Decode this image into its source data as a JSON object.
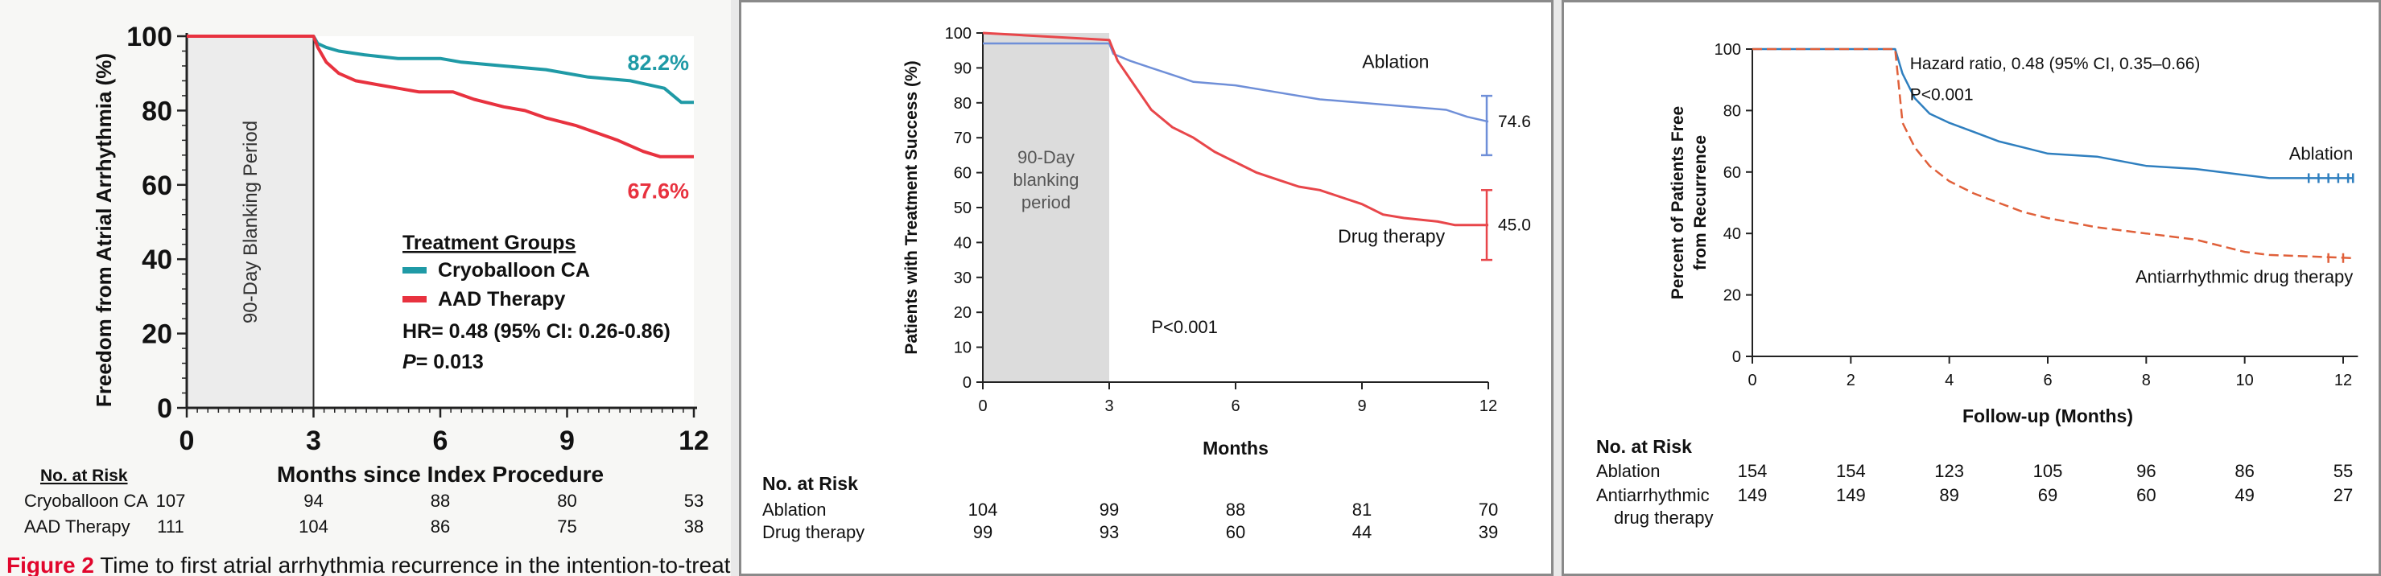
{
  "colors": {
    "p1_cryo": "#1f9aa6",
    "p1_aad": "#e8323f",
    "p2_ablation": "#6f8fd8",
    "p2_drug": "#e8464a",
    "p3_ablation": "#2f7fbf",
    "p3_aad": "#e0603a",
    "caption_red": "#e1062c"
  },
  "chart_data": [
    {
      "type": "line",
      "xlabel": "Months since Index Procedure",
      "ylabel": "Freedom from Atrial Arrhythmia (%)",
      "xlim": [
        0,
        12
      ],
      "ylim": [
        0,
        100
      ],
      "xticks": [
        "0",
        "3",
        "6",
        "9",
        "12"
      ],
      "yticks": [
        "0",
        "20",
        "40",
        "60",
        "80",
        "100"
      ],
      "blanking_label": "90-Day Blanking Period",
      "legend_title": "Treatment Groups",
      "hr_text": "HR= 0.48 (95% CI: 0.26-0.86)",
      "p_label": "P",
      "p_value": "= 0.013",
      "series": [
        {
          "name": "Cryoballoon CA",
          "end_label": "82.2%",
          "points": [
            [
              0,
              100
            ],
            [
              3,
              100
            ],
            [
              3.1,
              98
            ],
            [
              3.3,
              97
            ],
            [
              3.6,
              96
            ],
            [
              4.2,
              95
            ],
            [
              5,
              94
            ],
            [
              6,
              94
            ],
            [
              6.5,
              93
            ],
            [
              7.5,
              92
            ],
            [
              8.5,
              91
            ],
            [
              9.5,
              89
            ],
            [
              10.5,
              88
            ],
            [
              11.3,
              86
            ],
            [
              11.7,
              82.2
            ],
            [
              12,
              82.2
            ]
          ]
        },
        {
          "name": "AAD Therapy",
          "end_label": "67.6%",
          "points": [
            [
              0,
              100
            ],
            [
              3,
              100
            ],
            [
              3.1,
              97
            ],
            [
              3.3,
              93
            ],
            [
              3.6,
              90
            ],
            [
              4,
              88
            ],
            [
              4.5,
              87
            ],
            [
              5,
              86
            ],
            [
              5.5,
              85
            ],
            [
              6.3,
              85
            ],
            [
              6.8,
              83
            ],
            [
              7.5,
              81
            ],
            [
              8,
              80
            ],
            [
              8.5,
              78
            ],
            [
              9.2,
              76
            ],
            [
              9.7,
              74
            ],
            [
              10.2,
              72
            ],
            [
              10.8,
              69
            ],
            [
              11.2,
              67.6
            ],
            [
              12,
              67.6
            ]
          ]
        }
      ],
      "risk_title": "No. at Risk",
      "risk_rows": [
        {
          "label": "Cryoballoon CA",
          "values": [
            "107",
            "94",
            "88",
            "80",
            "53"
          ]
        },
        {
          "label": "AAD Therapy",
          "values": [
            "111",
            "104",
            "86",
            "75",
            "38"
          ]
        }
      ],
      "caption_bold": "Figure 2",
      "caption_rest": " Time to first atrial arrhythmia recurrence in the intention-to-treat"
    },
    {
      "type": "line",
      "xlabel": "Months",
      "ylabel": "Patients with Treatment Success (%)",
      "xlim": [
        0,
        12
      ],
      "ylim": [
        0,
        100
      ],
      "xticks": [
        "0",
        "3",
        "6",
        "9",
        "12"
      ],
      "yticks": [
        "0",
        "10",
        "20",
        "30",
        "40",
        "50",
        "60",
        "70",
        "80",
        "90",
        "100"
      ],
      "blanking_label": [
        "90-Day",
        "blanking",
        "period"
      ],
      "p_text": "P<0.001",
      "series": [
        {
          "name": "Ablation",
          "end_label": "74.6",
          "ci": [
            65,
            82
          ],
          "points": [
            [
              0,
              97
            ],
            [
              3,
              97
            ],
            [
              3.1,
              94
            ],
            [
              3.5,
              92
            ],
            [
              4,
              90
            ],
            [
              4.5,
              88
            ],
            [
              5,
              86
            ],
            [
              6,
              85
            ],
            [
              7,
              83
            ],
            [
              8,
              81
            ],
            [
              9,
              80
            ],
            [
              10,
              79
            ],
            [
              11,
              78
            ],
            [
              11.5,
              76
            ],
            [
              12,
              74.6
            ]
          ]
        },
        {
          "name": "Drug therapy",
          "end_label": "45.0",
          "ci": [
            35,
            55
          ],
          "points": [
            [
              0,
              100
            ],
            [
              3,
              98
            ],
            [
              3.2,
              92
            ],
            [
              3.6,
              85
            ],
            [
              4,
              78
            ],
            [
              4.5,
              73
            ],
            [
              5,
              70
            ],
            [
              5.5,
              66
            ],
            [
              6,
              63
            ],
            [
              6.5,
              60
            ],
            [
              7,
              58
            ],
            [
              7.5,
              56
            ],
            [
              8,
              55
            ],
            [
              8.5,
              53
            ],
            [
              9,
              51
            ],
            [
              9.5,
              48
            ],
            [
              10,
              47
            ],
            [
              10.8,
              46
            ],
            [
              11.2,
              45
            ],
            [
              12,
              45
            ]
          ]
        }
      ],
      "risk_title": "No. at Risk",
      "risk_rows": [
        {
          "label": "Ablation",
          "values": [
            "104",
            "99",
            "88",
            "81",
            "70"
          ]
        },
        {
          "label": "Drug therapy",
          "values": [
            "99",
            "93",
            "60",
            "44",
            "39"
          ]
        }
      ]
    },
    {
      "type": "line",
      "xlabel": "Follow-up (Months)",
      "ylabel": [
        "Percent of Patients Free",
        "from Recurrence"
      ],
      "xlim": [
        0,
        12
      ],
      "ylim": [
        0,
        100
      ],
      "xticks": [
        "0",
        "2",
        "4",
        "6",
        "8",
        "10",
        "12"
      ],
      "yticks": [
        "0",
        "20",
        "40",
        "60",
        "80",
        "100"
      ],
      "hr_text": "Hazard ratio, 0.48 (95% CI, 0.35–0.66)",
      "p_text": "P<0.001",
      "series": [
        {
          "name": "Ablation",
          "style": "solid",
          "points": [
            [
              0,
              100
            ],
            [
              2.9,
              100
            ],
            [
              3.05,
              92
            ],
            [
              3.3,
              84
            ],
            [
              3.6,
              79
            ],
            [
              4,
              76
            ],
            [
              4.5,
              73
            ],
            [
              5,
              70
            ],
            [
              5.5,
              68
            ],
            [
              6,
              66
            ],
            [
              7,
              65
            ],
            [
              8,
              62
            ],
            [
              9,
              61
            ],
            [
              10,
              59
            ],
            [
              10.5,
              58
            ],
            [
              12.2,
              58
            ]
          ]
        },
        {
          "name": "Antiarrhythmic drug therapy",
          "style": "dashed",
          "points": [
            [
              0,
              100
            ],
            [
              2.9,
              100
            ],
            [
              3.05,
              76
            ],
            [
              3.3,
              68
            ],
            [
              3.6,
              62
            ],
            [
              4,
              57
            ],
            [
              4.5,
              53
            ],
            [
              5,
              50
            ],
            [
              5.5,
              47
            ],
            [
              6,
              45
            ],
            [
              7,
              42
            ],
            [
              8,
              40
            ],
            [
              9,
              38
            ],
            [
              10,
              34
            ],
            [
              10.5,
              33
            ],
            [
              12.2,
              32
            ]
          ]
        }
      ],
      "risk_title": "No. at Risk",
      "risk_rows": [
        {
          "label": "Ablation",
          "values": [
            "154",
            "154",
            "123",
            "105",
            "96",
            "86",
            "55"
          ]
        },
        {
          "label": [
            "Antiarrhythmic",
            "drug therapy"
          ],
          "values": [
            "149",
            "149",
            "89",
            "69",
            "60",
            "49",
            "27"
          ]
        }
      ]
    }
  ]
}
